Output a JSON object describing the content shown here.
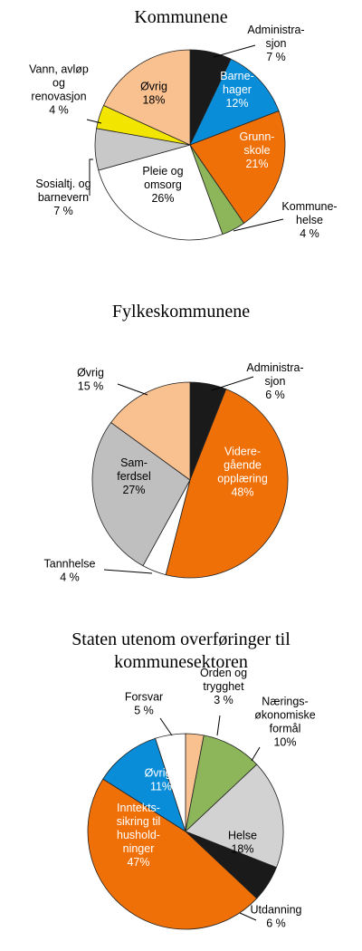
{
  "chart_data": [
    {
      "type": "pie",
      "title": "Kommunene",
      "slices": [
        {
          "label": [
            "Administra-",
            "sjon",
            "7 %"
          ],
          "value": 7,
          "color": "#1a1a1a"
        },
        {
          "label": [
            "Barne-",
            "hager",
            "12%"
          ],
          "value": 12,
          "color": "#0a8dd8"
        },
        {
          "label": [
            "Grunn-",
            "skole",
            "21%"
          ],
          "value": 21,
          "color": "#f07008"
        },
        {
          "label": [
            "Kommune-",
            "helse",
            "4 %"
          ],
          "value": 4,
          "color": "#8db55a"
        },
        {
          "label": [
            "Pleie og",
            "omsorg",
            "26%"
          ],
          "value": 26,
          "color": "#ffffff"
        },
        {
          "label": [
            "Sosialtj. og",
            "barnevern",
            "7 %"
          ],
          "value": 7,
          "color": "#c8c8c8"
        },
        {
          "label": [
            "Vann, avløp",
            "og",
            "renovasjon",
            "4 %"
          ],
          "value": 4,
          "color": "#f2e600"
        },
        {
          "label": [
            "Øvrig",
            "18%"
          ],
          "value": 18,
          "color": "#f9c190"
        }
      ]
    },
    {
      "type": "pie",
      "title": "Fylkeskommunene",
      "slices": [
        {
          "label": [
            "Administra-",
            "sjon",
            "6 %"
          ],
          "value": 6,
          "color": "#1a1a1a"
        },
        {
          "label": [
            "Videre-",
            "gående",
            "opplæring",
            "48%"
          ],
          "value": 48,
          "color": "#f07008"
        },
        {
          "label": [
            "Tannhelse",
            "4 %"
          ],
          "value": 4,
          "color": "#ffffff"
        },
        {
          "label": [
            "Sam-",
            "ferdsel",
            "27%"
          ],
          "value": 27,
          "color": "#bfbfbf"
        },
        {
          "label": [
            "Øvrig",
            "15 %"
          ],
          "value": 15,
          "color": "#f9c190"
        }
      ]
    },
    {
      "type": "pie",
      "title": [
        "Staten utenom overføringer til",
        "kommunesektoren"
      ],
      "slices": [
        {
          "label": [
            "Orden og",
            "trygghet",
            "3 %"
          ],
          "value": 3,
          "color": "#f9c190"
        },
        {
          "label": [
            "Nærings-",
            "økonomiske",
            "formål",
            "10%"
          ],
          "value": 10,
          "color": "#8db55a"
        },
        {
          "label": [
            "Helse",
            "18%"
          ],
          "value": 18,
          "color": "#d2d2d2"
        },
        {
          "label": [
            "Utdanning",
            "6 %"
          ],
          "value": 6,
          "color": "#1a1a1a"
        },
        {
          "label": [
            "Inntekts-",
            "sikring til",
            "hushold-",
            "ninger",
            "47%"
          ],
          "value": 47,
          "color": "#f07008"
        },
        {
          "label": [
            "Øvrige",
            "11%"
          ],
          "value": 11,
          "color": "#0a8dd8"
        },
        {
          "label": [
            "Forsvar",
            "5 %"
          ],
          "value": 5,
          "color": "#ffffff"
        }
      ]
    }
  ]
}
